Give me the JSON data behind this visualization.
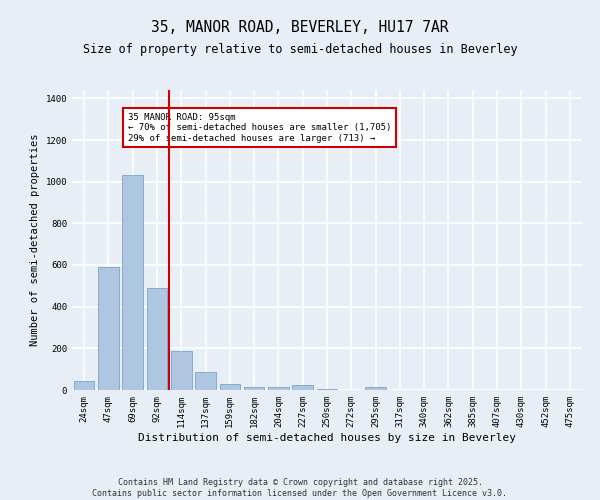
{
  "title1": "35, MANOR ROAD, BEVERLEY, HU17 7AR",
  "title2": "Size of property relative to semi-detached houses in Beverley",
  "xlabel": "Distribution of semi-detached houses by size in Beverley",
  "ylabel": "Number of semi-detached properties",
  "categories": [
    "24sqm",
    "47sqm",
    "69sqm",
    "92sqm",
    "114sqm",
    "137sqm",
    "159sqm",
    "182sqm",
    "204sqm",
    "227sqm",
    "250sqm",
    "272sqm",
    "295sqm",
    "317sqm",
    "340sqm",
    "362sqm",
    "385sqm",
    "407sqm",
    "430sqm",
    "452sqm",
    "475sqm"
  ],
  "values": [
    45,
    590,
    1030,
    490,
    185,
    85,
    28,
    16,
    16,
    22,
    5,
    0,
    15,
    0,
    0,
    0,
    0,
    0,
    0,
    0,
    0
  ],
  "bar_color": "#aec6df",
  "bar_edge_color": "#6699cc",
  "bg_color": "#e8eef5",
  "grid_color": "#ffffff",
  "vline_color": "#cc0000",
  "annotation_text": "35 MANOR ROAD: 95sqm\n← 70% of semi-detached houses are smaller (1,705)\n29% of semi-detached houses are larger (713) →",
  "annotation_box_color": "#cc0000",
  "ylim": [
    0,
    1440
  ],
  "yticks": [
    0,
    200,
    400,
    600,
    800,
    1000,
    1200,
    1400
  ],
  "footer": "Contains HM Land Registry data © Crown copyright and database right 2025.\nContains public sector information licensed under the Open Government Licence v3.0.",
  "title_fontsize": 10.5,
  "subtitle_fontsize": 8.5,
  "xlabel_fontsize": 8,
  "ylabel_fontsize": 7.5,
  "tick_fontsize": 6.5,
  "footer_fontsize": 6,
  "ann_fontsize": 6.5
}
